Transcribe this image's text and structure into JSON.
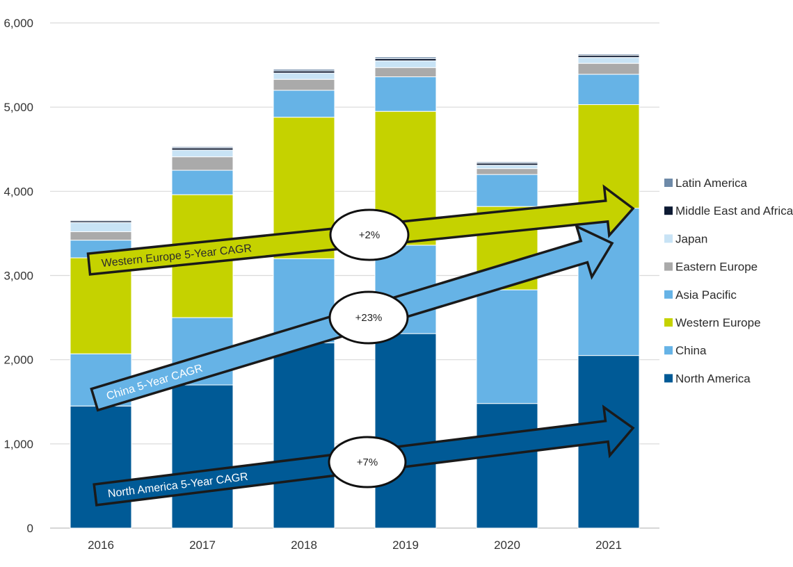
{
  "chart_data": {
    "type": "bar",
    "stacked": true,
    "categories": [
      "2016",
      "2017",
      "2018",
      "2019",
      "2020",
      "2021"
    ],
    "ylim": [
      0,
      6000
    ],
    "y_ticks": [
      0,
      1000,
      2000,
      3000,
      4000,
      5000,
      6000
    ],
    "y_tick_labels": [
      "0",
      "1,000",
      "2,000",
      "3,000",
      "4,000",
      "5,000",
      "6,000"
    ],
    "grid": true,
    "legend_position": "right",
    "series": [
      {
        "name": "North America",
        "color": "#005a96",
        "values": [
          1450,
          1700,
          2200,
          2310,
          1480,
          2050
        ]
      },
      {
        "name": "China",
        "color": "#66b3e6",
        "values": [
          620,
          800,
          1000,
          1050,
          1350,
          1750
        ]
      },
      {
        "name": "Western Europe",
        "color": "#c5d200",
        "values": [
          1140,
          1460,
          1680,
          1590,
          990,
          1230
        ]
      },
      {
        "name": "Asia Pacific",
        "color": "#66b3e6",
        "values": [
          210,
          290,
          320,
          410,
          380,
          360
        ]
      },
      {
        "name": "Eastern Europe",
        "color": "#aaaaaa",
        "values": [
          100,
          160,
          130,
          110,
          70,
          130
        ]
      },
      {
        "name": "Japan",
        "color": "#c8e3f5",
        "values": [
          110,
          80,
          75,
          80,
          40,
          70
        ]
      },
      {
        "name": "Middle East and Africa",
        "color": "#0d1a33",
        "values": [
          20,
          25,
          25,
          25,
          25,
          25
        ]
      },
      {
        "name": "Latin America",
        "color": "#6e8aa8",
        "values": [
          10,
          15,
          20,
          20,
          15,
          15
        ]
      }
    ],
    "legend_order": [
      "Latin America",
      "Middle East and Africa",
      "Japan",
      "Eastern Europe",
      "Asia Pacific",
      "Western Europe",
      "China",
      "North America"
    ],
    "annotations": [
      {
        "label": "Western Europe 5-Year CAGR",
        "rate": "+2%",
        "color": "#c5d200",
        "text_style": "dark"
      },
      {
        "label": "China 5-Year CAGR",
        "rate": "+23%",
        "color": "#66b3e6",
        "text_style": "light"
      },
      {
        "label": "North America 5-Year CAGR",
        "rate": "+7%",
        "color": "#005a96",
        "text_style": "light"
      }
    ]
  }
}
